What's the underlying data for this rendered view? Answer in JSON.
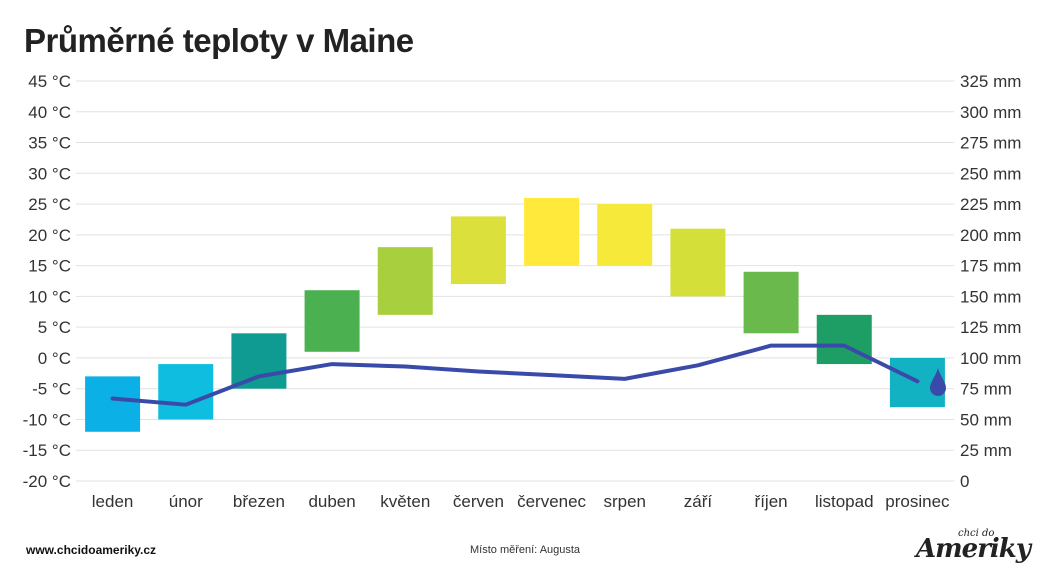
{
  "title": "Průměrné teploty v Maine",
  "footer": {
    "url": "www.chcidoameriky.cz",
    "note": "Místo měření: Augusta",
    "logo_small": "chci do",
    "logo_big": "Ameriky"
  },
  "chart_data": {
    "type": "bar",
    "title": "Průměrné teploty v Maine",
    "categories": [
      "leden",
      "únor",
      "březen",
      "duben",
      "květen",
      "červen",
      "červenec",
      "srpen",
      "září",
      "říjen",
      "listopad",
      "prosinec"
    ],
    "series": [
      {
        "kind": "floating-bar",
        "axis": "left",
        "low": [
          -12,
          -10,
          -5,
          1,
          7,
          12,
          15,
          15,
          10,
          4,
          -1,
          -8
        ],
        "high": [
          -3,
          -1,
          4,
          11,
          18,
          23,
          26,
          25,
          21,
          14,
          7,
          0
        ],
        "colors": [
          "#0bb0e6",
          "#0fbde0",
          "#0f9b92",
          "#4bb04f",
          "#a8cf3d",
          "#dbe03c",
          "#ffea3b",
          "#f6e93a",
          "#d4df3a",
          "#6ab94d",
          "#1e9e65",
          "#13b2c3"
        ]
      },
      {
        "kind": "line",
        "axis": "right",
        "values": [
          67,
          62,
          85,
          95,
          93,
          89,
          86,
          83,
          94,
          110,
          110,
          81
        ],
        "color": "#3a4aa8"
      }
    ],
    "y_left": {
      "min": -20,
      "max": 45,
      "step": 5,
      "tick_labels": [
        "-20 °C",
        "-15 °C",
        "-10 °C",
        "-5 °C",
        "0 °C",
        "5 °C",
        "10 °C",
        "15 °C",
        "20 °C",
        "25 °C",
        "30 °C",
        "35 °C",
        "40 °C",
        "45 °C"
      ]
    },
    "y_right": {
      "min": 0,
      "max": 325,
      "step": 25,
      "tick_labels": [
        "0",
        "25 mm",
        "50 mm",
        "75 mm",
        "100 mm",
        "125 mm",
        "150 mm",
        "175 mm",
        "200 mm",
        "225 mm",
        "250 mm",
        "275 mm",
        "300 mm",
        "325 mm"
      ]
    },
    "grid": true,
    "icon": "water-drop-icon",
    "colors": {
      "grid": "#e2e2e2",
      "line": "#3a4aa8"
    }
  }
}
